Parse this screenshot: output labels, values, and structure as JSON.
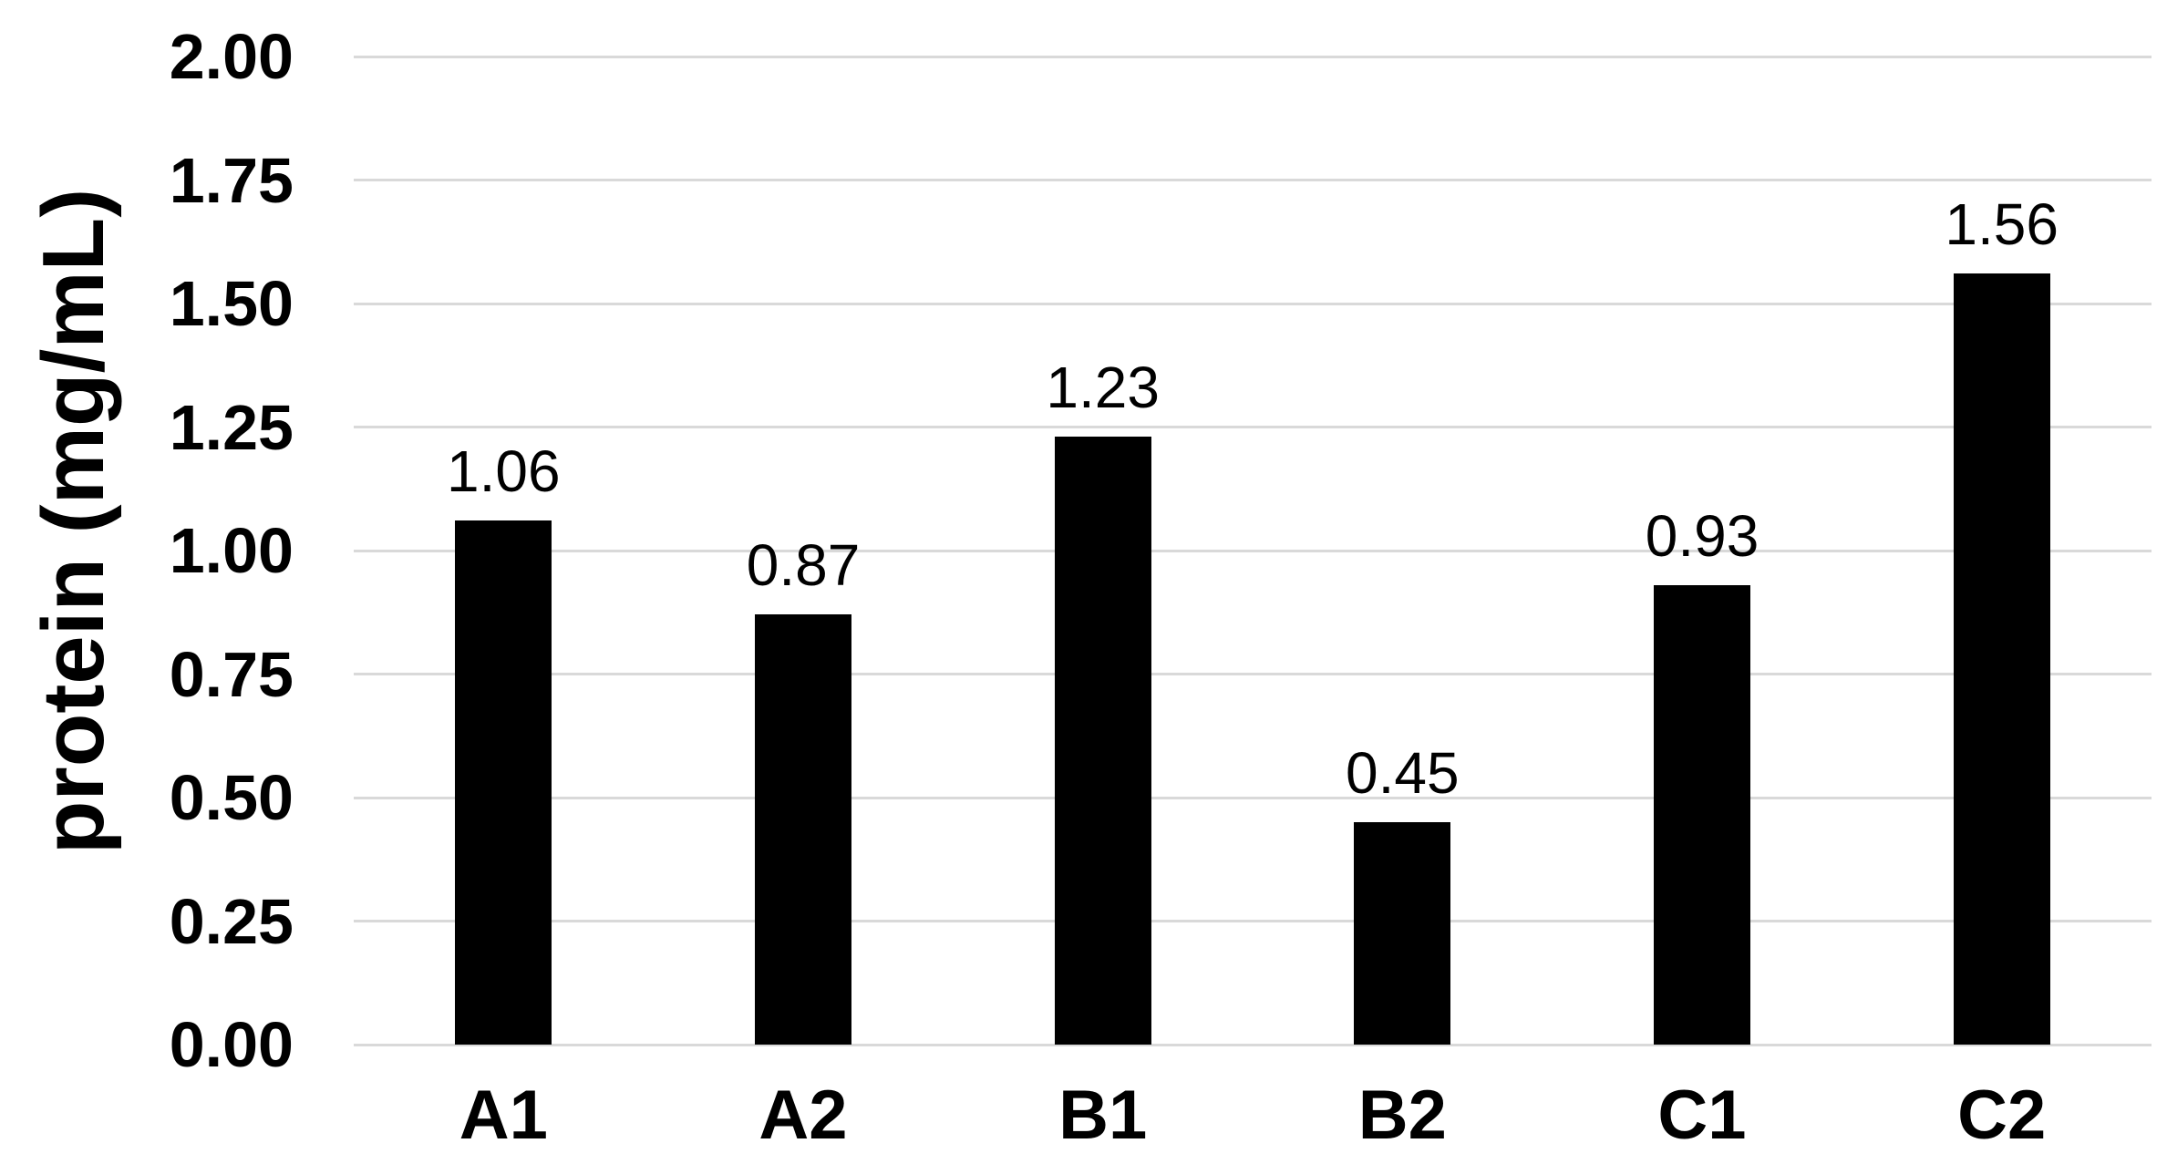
{
  "chart_data": {
    "type": "bar",
    "title": "",
    "xlabel": "",
    "ylabel": "protein (mg/mL)",
    "categories": [
      "A1",
      "A2",
      "B1",
      "B2",
      "C1",
      "C2"
    ],
    "values": [
      1.06,
      0.87,
      1.23,
      0.45,
      0.93,
      1.56
    ],
    "data_labels": [
      "1.06",
      "0.87",
      "1.23",
      "0.45",
      "0.93",
      "1.56"
    ],
    "y_ticks": [
      "0.00",
      "0.25",
      "0.50",
      "0.75",
      "1.00",
      "1.25",
      "1.50",
      "1.75",
      "2.00"
    ],
    "ylim": [
      0,
      2.0
    ],
    "grid": "horizontal",
    "legend": "none",
    "colors": {
      "bar": "#000000",
      "gridline": "#d9d9d9",
      "text": "#000000",
      "background": "#ffffff"
    }
  }
}
